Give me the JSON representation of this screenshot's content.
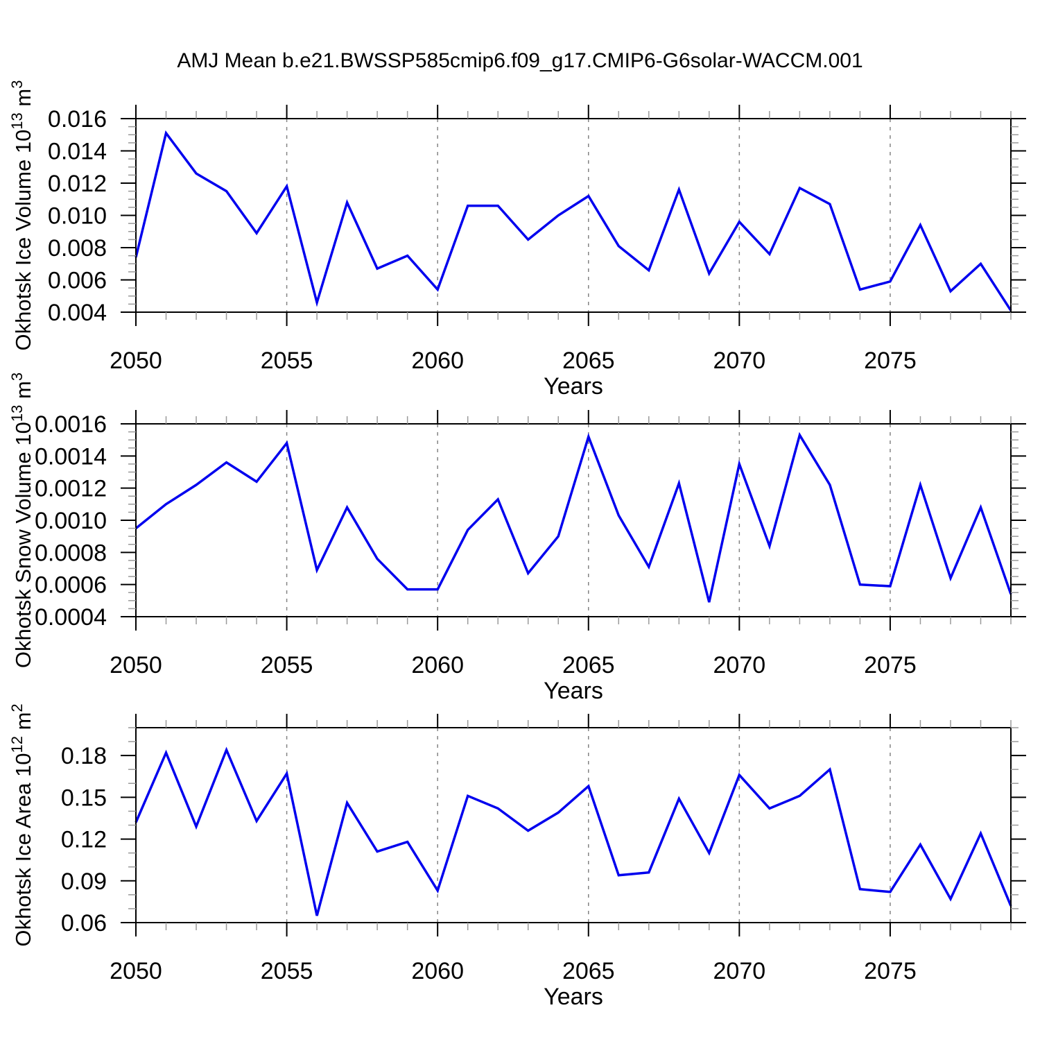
{
  "title": "AMJ Mean b.e21.BWSSP585cmip6.f09_g17.CMIP6-G6solar-WACCM.001",
  "colors": {
    "line": "#0000EE",
    "grid": "#848484",
    "frame": "#000000",
    "minor_tick": "#9a9a9a",
    "major_tick": "#000000",
    "background": "#ffffff"
  },
  "chart_data": [
    {
      "type": "line",
      "title": "",
      "xlabel": "Years",
      "ylabel": "Okhotsk Ice Volume 10^13 m^3",
      "ylabel_parts": [
        {
          "t": "Okhotsk Ice Volume 10",
          "sup": false
        },
        {
          "t": "13",
          "sup": true
        },
        {
          "t": " m",
          "sup": false
        },
        {
          "t": "3",
          "sup": true
        }
      ],
      "xlim": [
        2050,
        2079
      ],
      "ylim": [
        0.004,
        0.016
      ],
      "xticks": [
        2050,
        2055,
        2060,
        2065,
        2070,
        2075
      ],
      "xminor_step": 1,
      "gridlines_x": [
        2055,
        2060,
        2065,
        2070,
        2075
      ],
      "yticks": [
        0.004,
        0.006,
        0.008,
        0.01,
        0.012,
        0.014,
        0.016
      ],
      "ytick_labels": [
        "0.004",
        "0.006",
        "0.008",
        "0.010",
        "0.012",
        "0.014",
        "0.016"
      ],
      "yminor_step": 0.0005,
      "x": [
        2050,
        2051,
        2052,
        2053,
        2054,
        2055,
        2056,
        2057,
        2058,
        2059,
        2060,
        2061,
        2062,
        2063,
        2064,
        2065,
        2066,
        2067,
        2068,
        2069,
        2070,
        2071,
        2072,
        2073,
        2074,
        2075,
        2076,
        2077,
        2078,
        2079
      ],
      "values": [
        0.0074,
        0.0151,
        0.0126,
        0.0115,
        0.0089,
        0.0118,
        0.0046,
        0.0108,
        0.0067,
        0.0075,
        0.0054,
        0.0106,
        0.0106,
        0.0085,
        0.01,
        0.0112,
        0.0081,
        0.0066,
        0.0116,
        0.0064,
        0.0096,
        0.0076,
        0.0117,
        0.0107,
        0.0054,
        0.0059,
        0.0094,
        0.0053,
        0.007,
        0.0041
      ]
    },
    {
      "type": "line",
      "title": "",
      "xlabel": "Years",
      "ylabel": "Okhotsk Snow Volume 10^13 m^3",
      "ylabel_parts": [
        {
          "t": "Okhotsk Snow Volume 10",
          "sup": false
        },
        {
          "t": "13",
          "sup": true
        },
        {
          "t": " m",
          "sup": false
        },
        {
          "t": "3",
          "sup": true
        }
      ],
      "xlim": [
        2050,
        2079
      ],
      "ylim": [
        0.0004,
        0.0016
      ],
      "xticks": [
        2050,
        2055,
        2060,
        2065,
        2070,
        2075
      ],
      "xminor_step": 1,
      "gridlines_x": [
        2055,
        2060,
        2065,
        2070,
        2075
      ],
      "yticks": [
        0.0004,
        0.0006,
        0.0008,
        0.001,
        0.0012,
        0.0014,
        0.0016
      ],
      "ytick_labels": [
        "0.0004",
        "0.0006",
        "0.0008",
        "0.0010",
        "0.0012",
        "0.0014",
        "0.0016"
      ],
      "yminor_step": 5e-05,
      "x": [
        2050,
        2051,
        2052,
        2053,
        2054,
        2055,
        2056,
        2057,
        2058,
        2059,
        2060,
        2061,
        2062,
        2063,
        2064,
        2065,
        2066,
        2067,
        2068,
        2069,
        2070,
        2071,
        2072,
        2073,
        2074,
        2075,
        2076,
        2077,
        2078,
        2079
      ],
      "values": [
        0.00095,
        0.0011,
        0.00122,
        0.00136,
        0.00124,
        0.00148,
        0.00069,
        0.00108,
        0.00076,
        0.00057,
        0.00057,
        0.00094,
        0.00113,
        0.00067,
        0.0009,
        0.00152,
        0.00103,
        0.00071,
        0.00123,
        0.00049,
        0.00135,
        0.00084,
        0.00153,
        0.00122,
        0.0006,
        0.00059,
        0.00122,
        0.00064,
        0.00108,
        0.00054
      ]
    },
    {
      "type": "line",
      "title": "",
      "xlabel": "Years",
      "ylabel": "Okhotsk Ice Area 10^12 m^2",
      "ylabel_parts": [
        {
          "t": "Okhotsk Ice Area 10",
          "sup": false
        },
        {
          "t": "12",
          "sup": true
        },
        {
          "t": " m",
          "sup": false
        },
        {
          "t": "2",
          "sup": true
        }
      ],
      "xlim": [
        2050,
        2079
      ],
      "ylim": [
        0.06,
        0.2
      ],
      "xticks": [
        2050,
        2055,
        2060,
        2065,
        2070,
        2075
      ],
      "xminor_step": 1,
      "gridlines_x": [
        2055,
        2060,
        2065,
        2070,
        2075
      ],
      "yticks": [
        0.06,
        0.09,
        0.12,
        0.15,
        0.18
      ],
      "ytick_labels": [
        "0.06",
        "0.09",
        "0.12",
        "0.15",
        "0.18"
      ],
      "yminor_step": 0.01,
      "x": [
        2050,
        2051,
        2052,
        2053,
        2054,
        2055,
        2056,
        2057,
        2058,
        2059,
        2060,
        2061,
        2062,
        2063,
        2064,
        2065,
        2066,
        2067,
        2068,
        2069,
        2070,
        2071,
        2072,
        2073,
        2074,
        2075,
        2076,
        2077,
        2078,
        2079
      ],
      "values": [
        0.132,
        0.182,
        0.129,
        0.184,
        0.133,
        0.167,
        0.065,
        0.146,
        0.111,
        0.118,
        0.083,
        0.151,
        0.142,
        0.126,
        0.139,
        0.158,
        0.094,
        0.096,
        0.149,
        0.11,
        0.166,
        0.142,
        0.151,
        0.17,
        0.084,
        0.082,
        0.116,
        0.077,
        0.124,
        0.072
      ]
    }
  ]
}
